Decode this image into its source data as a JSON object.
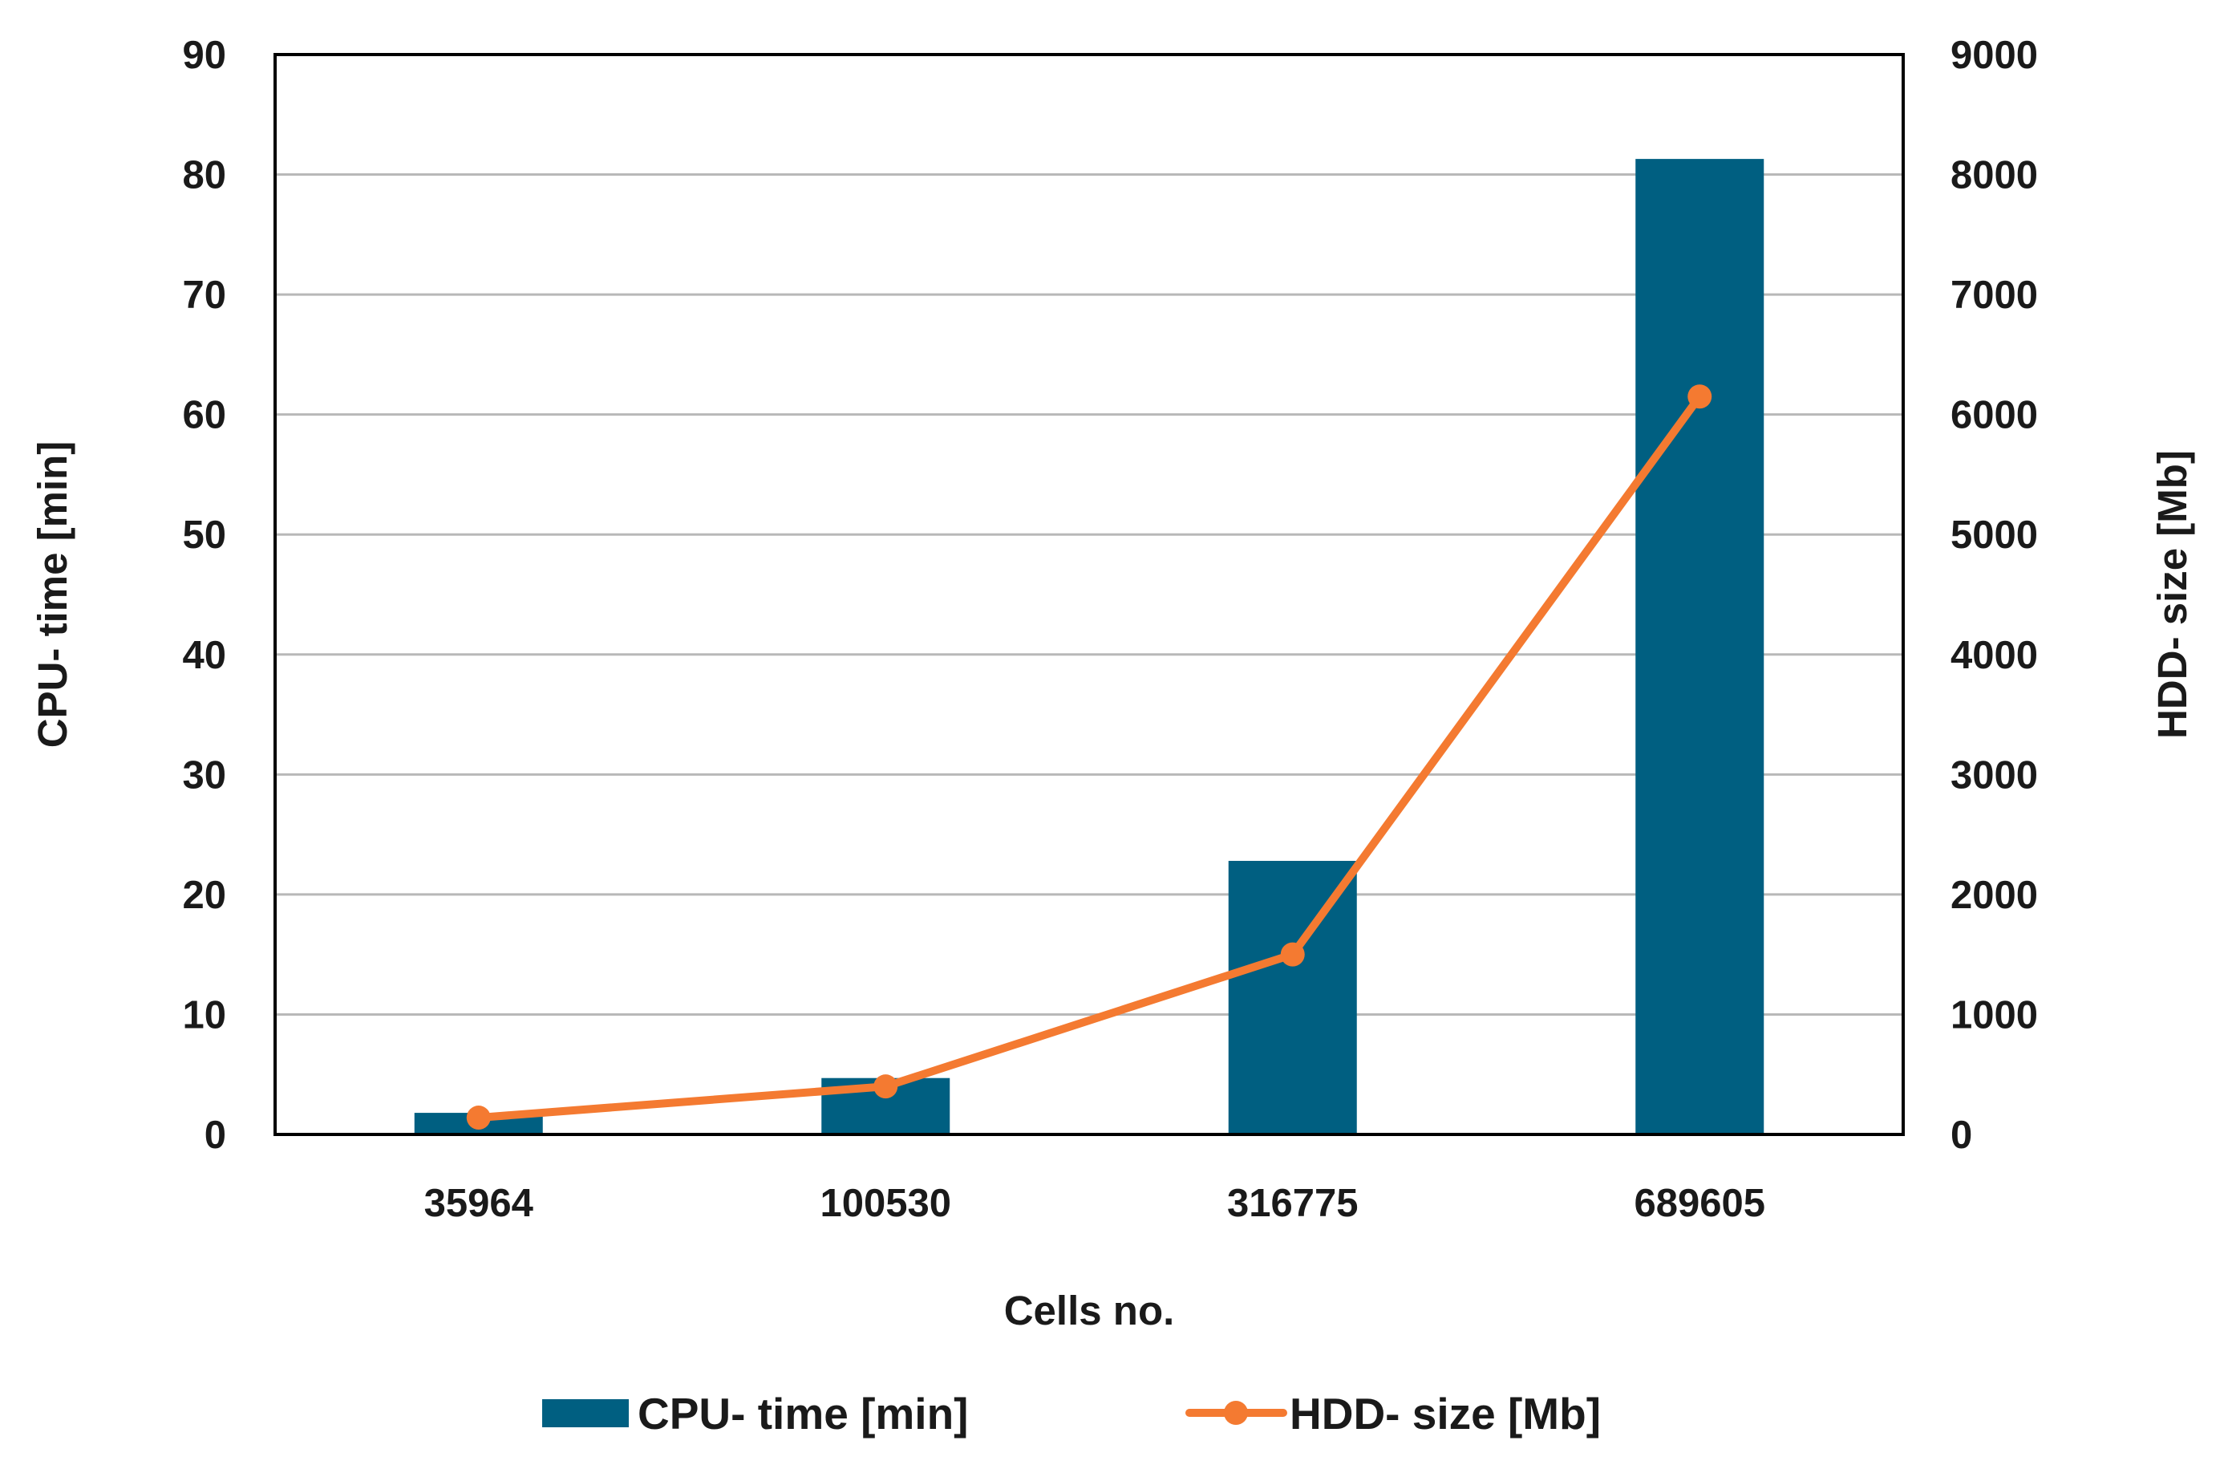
{
  "chart_data": {
    "type": "bar",
    "categories": [
      "35964",
      "100530",
      "316775",
      "689605"
    ],
    "series": [
      {
        "name": "CPU- time [min]",
        "type": "bar",
        "axis": "left",
        "values": [
          1.8,
          4.7,
          22.8,
          81.3
        ],
        "color": "#005f81"
      },
      {
        "name": "HDD- size [Mb]",
        "type": "line",
        "axis": "right",
        "markers": true,
        "values": [
          140,
          400,
          1500,
          6150
        ],
        "color": "#f47a31"
      }
    ],
    "xlabel": "Cells no.",
    "ylabel": "CPU- time [min]",
    "y2label": "HDD- size [Mb]",
    "ylim": [
      0,
      90
    ],
    "y2lim": [
      0,
      9000
    ],
    "yticks": [
      "0",
      "10",
      "20",
      "30",
      "40",
      "50",
      "60",
      "70",
      "80",
      "90"
    ],
    "y2ticks": [
      "0",
      "1000",
      "2000",
      "3000",
      "4000",
      "5000",
      "6000",
      "7000",
      "8000",
      "9000"
    ],
    "grid": true,
    "legend": "bottom",
    "colors": {
      "gridline": "#b8b8b8",
      "frame": "#000000"
    }
  }
}
